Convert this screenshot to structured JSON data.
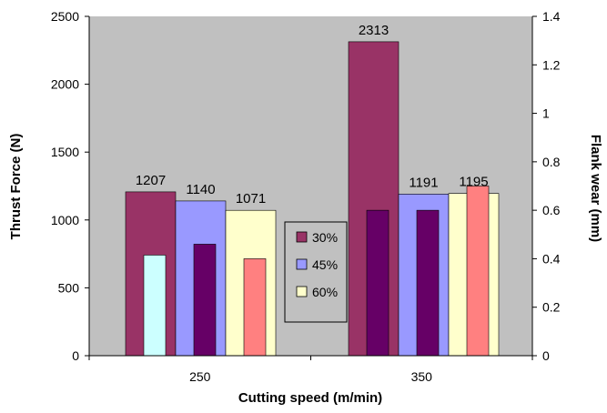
{
  "chart_data": {
    "type": "bar",
    "xlabel": "Cutting speed (m/min)",
    "ylabel": "Thrust Force (N)",
    "ylabel_right": "Flank wear (mm)",
    "categories": [
      "250",
      "350"
    ],
    "ylim": [
      0,
      2500
    ],
    "yticks": [
      0,
      500,
      1000,
      1500,
      2000,
      2500
    ],
    "ylim_right": [
      0,
      1.4
    ],
    "yticks_right": [
      0,
      0.2,
      0.4,
      0.6,
      0.8,
      1,
      1.2,
      1.4
    ],
    "series": [
      {
        "name": "30%",
        "values": [
          1207,
          2313
        ],
        "color": "#993366"
      },
      {
        "name": "45%",
        "values": [
          1140,
          1191
        ],
        "color": "#9999FF"
      },
      {
        "name": "60%",
        "values": [
          1071,
          1195
        ],
        "color": "#FFFFCC"
      }
    ],
    "flank_wear": [
      {
        "values": [
          0.415,
          0.6
        ],
        "colors": [
          "#CCFFFF",
          "#660066"
        ]
      },
      {
        "values": [
          0.46,
          0.6
        ],
        "colors": [
          "#660066",
          "#660066"
        ]
      },
      {
        "values": [
          0.4,
          0.7
        ],
        "colors": [
          "#FF8080",
          "#FF8080"
        ]
      }
    ],
    "grid": false,
    "plot_background": "#C0C0C0",
    "legend_position": "center"
  }
}
